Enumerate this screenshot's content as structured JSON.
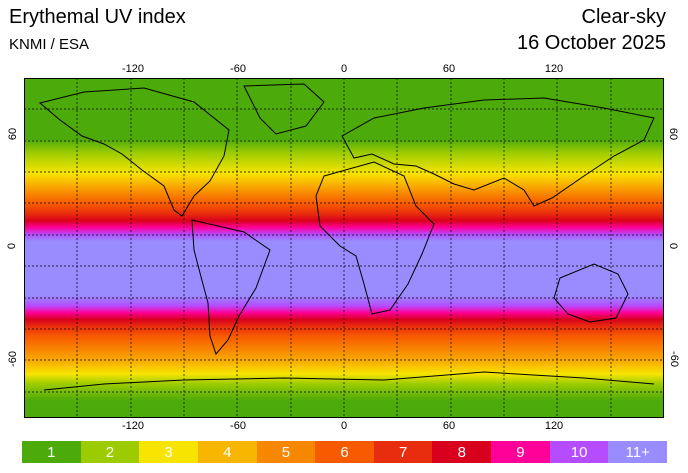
{
  "header": {
    "title": "Erythemal UV index",
    "source": "KNMI / ESA",
    "mode": "Clear-sky",
    "date": "16 October 2025"
  },
  "axes": {
    "lon_ticks": [
      "-120",
      "-60",
      "0",
      "60",
      "120"
    ],
    "lat_ticks_left": [
      "60",
      "0",
      "-60"
    ],
    "lat_ticks_right": [
      "60",
      "0",
      "-60"
    ]
  },
  "legend": {
    "items": [
      {
        "label": "1",
        "color": "#4caa0a"
      },
      {
        "label": "2",
        "color": "#9ccc00"
      },
      {
        "label": "3",
        "color": "#f7e400"
      },
      {
        "label": "4",
        "color": "#f8b600"
      },
      {
        "label": "5",
        "color": "#f88700"
      },
      {
        "label": "6",
        "color": "#f85a00"
      },
      {
        "label": "7",
        "color": "#e82c0e"
      },
      {
        "label": "8",
        "color": "#d8001d"
      },
      {
        "label": "9",
        "color": "#ff0099"
      },
      {
        "label": "10",
        "color": "#b54cff"
      },
      {
        "label": "11+",
        "color": "#998cff"
      }
    ]
  }
}
